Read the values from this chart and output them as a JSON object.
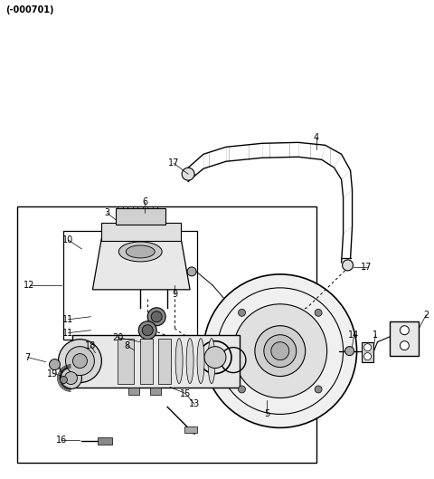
{
  "title": "(-000701)",
  "bg_color": "#ffffff",
  "line_color": "#000000",
  "fig_width": 4.8,
  "fig_height": 5.29,
  "dpi": 100,
  "xlim": [
    0,
    480
  ],
  "ylim": [
    0,
    529
  ]
}
